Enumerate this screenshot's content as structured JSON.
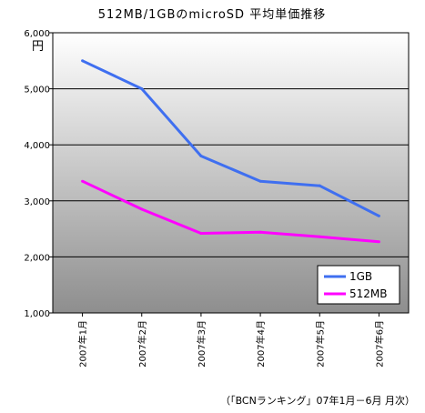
{
  "chart_data": {
    "type": "line",
    "title": "512MB/1GBのmicroSD 平均単価推移",
    "ylabel": "円",
    "ylim": [
      1000,
      6000
    ],
    "yticks": [
      "1,000",
      "2,000",
      "3,000",
      "4,000",
      "5,000",
      "6,000"
    ],
    "ytick_values": [
      1000,
      2000,
      3000,
      4000,
      5000,
      6000
    ],
    "categories": [
      "2007年1月",
      "2007年2月",
      "2007年3月",
      "2007年4月",
      "2007年5月",
      "2007年6月"
    ],
    "series": [
      {
        "name": "1GB",
        "color": "#3f6ff0",
        "values": [
          5500,
          5000,
          3800,
          3350,
          3270,
          2730
        ]
      },
      {
        "name": "512MB",
        "color": "#ff00ff",
        "values": [
          3350,
          2850,
          2420,
          2440,
          2360,
          2270
        ]
      }
    ],
    "grid": true,
    "legend": "bottom-right",
    "background": "gradient-gray",
    "source": "（「BCNランキング」07年1月－6月 月次）"
  }
}
